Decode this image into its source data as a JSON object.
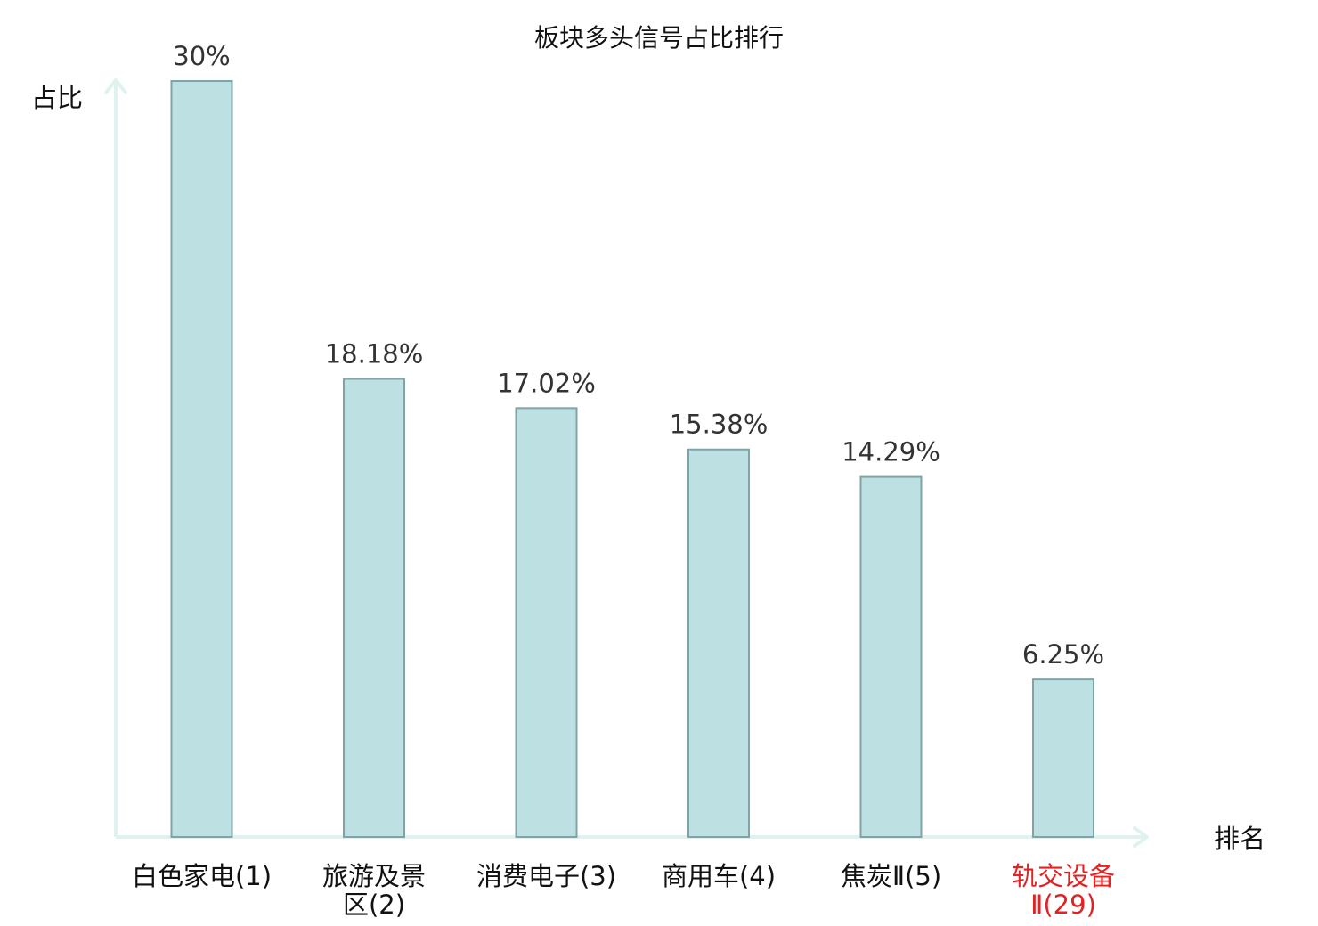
{
  "chart_data": {
    "type": "bar",
    "title": "板块多头信号占比排行",
    "ylabel": "占比",
    "xlabel": "排名",
    "ylim": [
      0,
      30
    ],
    "grid": false,
    "categories": [
      {
        "lines": [
          "白色家电(1)"
        ],
        "highlight": false
      },
      {
        "lines": [
          "旅游及景",
          "区(2)"
        ],
        "highlight": false
      },
      {
        "lines": [
          "消费电子(3)"
        ],
        "highlight": false
      },
      {
        "lines": [
          "商用车(4)"
        ],
        "highlight": false
      },
      {
        "lines": [
          "焦炭Ⅱ(5)"
        ],
        "highlight": false
      },
      {
        "lines": [
          "轨交设备",
          "Ⅱ(29)"
        ],
        "highlight": true
      }
    ],
    "values": [
      30,
      18.18,
      17.02,
      15.38,
      14.29,
      6.25
    ],
    "value_labels": [
      "30%",
      "18.18%",
      "17.02%",
      "15.38%",
      "14.29%",
      "6.25%"
    ],
    "colors": {
      "bar_fill": "#bde0e2",
      "bar_stroke": "#7fa3a6",
      "axis": "#dff2ef",
      "label": "#111111",
      "highlight": "#e32222"
    }
  }
}
